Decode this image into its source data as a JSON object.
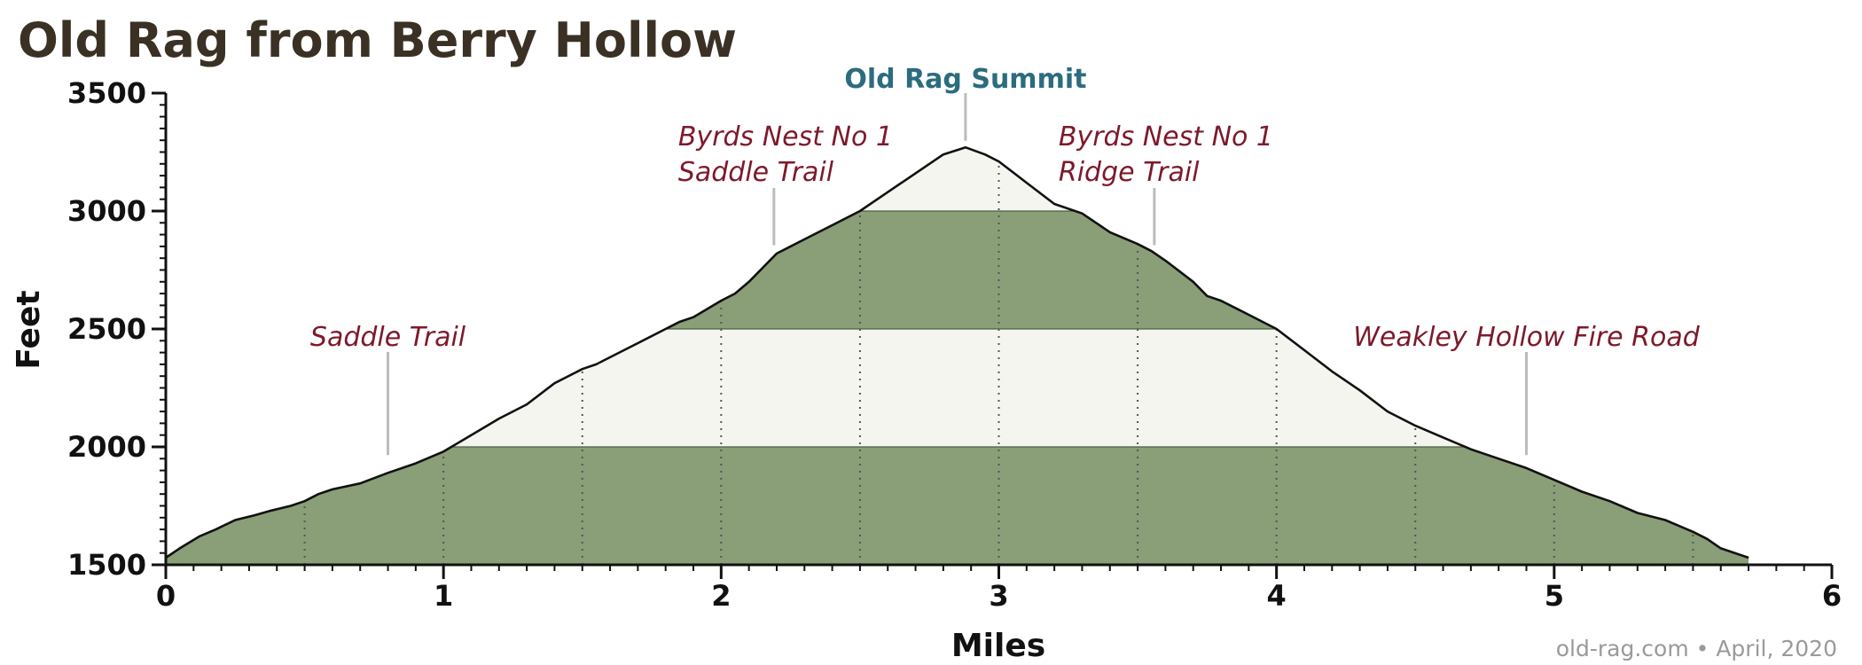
{
  "chart_data": {
    "type": "area",
    "title": "Old Rag from Berry Hollow",
    "xlabel": "Miles",
    "ylabel": "Feet",
    "xlim": [
      0,
      6
    ],
    "ylim": [
      1500,
      3500
    ],
    "x_ticks": [
      0,
      1,
      2,
      3,
      4,
      5,
      6
    ],
    "x_tick_labels": [
      "0",
      "1",
      "2",
      "3",
      "4",
      "5",
      "6"
    ],
    "y_ticks": [
      1500,
      2000,
      2500,
      3000,
      3500
    ],
    "y_tick_labels": [
      "1500",
      "2000",
      "2500",
      "3000",
      "3500"
    ],
    "elevation_bands": [
      {
        "from": 1500,
        "to": 2000,
        "color": "#8a9e78"
      },
      {
        "from": 2000,
        "to": 2500,
        "color": "#f4f5ee"
      },
      {
        "from": 2500,
        "to": 3000,
        "color": "#8a9e78"
      },
      {
        "from": 3000,
        "to": 3500,
        "color": "#f4f5ee"
      }
    ],
    "half_mile_markers": [
      0.5,
      1,
      1.5,
      2,
      2.5,
      3,
      3.5,
      4,
      4.5,
      5,
      5.5
    ],
    "profile": {
      "x": [
        0,
        0.05,
        0.12,
        0.18,
        0.25,
        0.32,
        0.38,
        0.45,
        0.5,
        0.55,
        0.6,
        0.7,
        0.8,
        0.9,
        1.0,
        1.1,
        1.2,
        1.3,
        1.4,
        1.5,
        1.55,
        1.6,
        1.7,
        1.8,
        1.85,
        1.9,
        2.0,
        2.05,
        2.1,
        2.2,
        2.3,
        2.4,
        2.5,
        2.6,
        2.7,
        2.8,
        2.88,
        2.95,
        3.0,
        3.1,
        3.2,
        3.3,
        3.4,
        3.5,
        3.55,
        3.6,
        3.7,
        3.75,
        3.8,
        3.9,
        4.0,
        4.1,
        4.2,
        4.3,
        4.4,
        4.5,
        4.6,
        4.7,
        4.8,
        4.9,
        5.0,
        5.1,
        5.2,
        5.3,
        5.4,
        5.5,
        5.55,
        5.6,
        5.7
      ],
      "y": [
        1530,
        1570,
        1620,
        1650,
        1690,
        1710,
        1730,
        1750,
        1770,
        1800,
        1820,
        1845,
        1890,
        1930,
        1980,
        2050,
        2120,
        2180,
        2270,
        2330,
        2350,
        2380,
        2440,
        2500,
        2530,
        2550,
        2620,
        2650,
        2700,
        2820,
        2880,
        2940,
        3000,
        3080,
        3160,
        3240,
        3270,
        3240,
        3210,
        3120,
        3030,
        2990,
        2910,
        2860,
        2830,
        2790,
        2700,
        2640,
        2620,
        2560,
        2500,
        2410,
        2320,
        2240,
        2150,
        2090,
        2040,
        1990,
        1950,
        1910,
        1860,
        1810,
        1770,
        1720,
        1690,
        1640,
        1610,
        1570,
        1530
      ]
    },
    "annotations": [
      {
        "lines": [
          "Saddle Trail"
        ],
        "x": 0.8,
        "y": 1950
      },
      {
        "lines": [
          "Byrds Nest No 1",
          "Saddle Trail"
        ],
        "x": 2.19,
        "y": 2840
      },
      {
        "lines": [
          "Old Rag Summit"
        ],
        "x": 2.88,
        "y": 3275
      },
      {
        "lines": [
          "Byrds Nest No 1",
          "Ridge Trail"
        ],
        "x": 3.56,
        "y": 2840
      },
      {
        "lines": [
          "Weakley Hollow Fire Road"
        ],
        "x": 4.9,
        "y": 1950
      }
    ],
    "credit": "old-rag.com • April, 2020",
    "grid": false,
    "legend": "none"
  }
}
